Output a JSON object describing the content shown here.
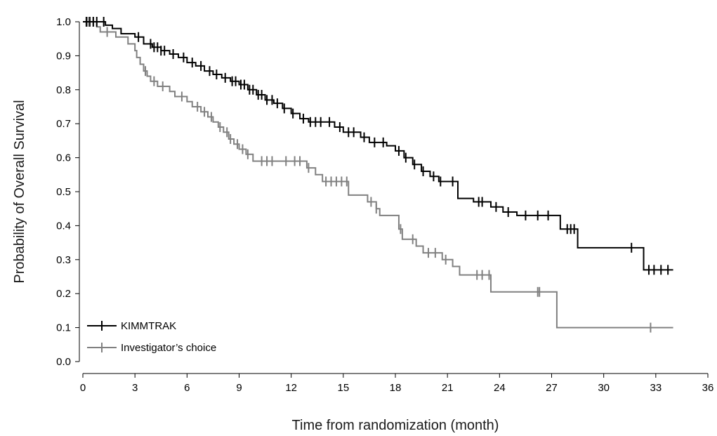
{
  "chart_data": {
    "type": "line",
    "step": true,
    "xlabel": "Time from randomization (month)",
    "ylabel": "Probability of Overall Survival",
    "xlim": [
      0,
      36
    ],
    "ylim": [
      0,
      1.0
    ],
    "xticks": [
      0,
      3,
      6,
      9,
      12,
      15,
      18,
      21,
      24,
      27,
      30,
      33,
      36
    ],
    "yticks": [
      0.0,
      0.1,
      0.2,
      0.3,
      0.4,
      0.5,
      0.6,
      0.7,
      0.8,
      0.9,
      1.0
    ],
    "ytick_labels": [
      "0.0",
      "0.1",
      "0.2",
      "0.3",
      "0.4",
      "0.5",
      "0.6",
      "0.7",
      "0.8",
      "0.9",
      "1.0"
    ],
    "grid": false,
    "legend_position": "bottom-left",
    "series": [
      {
        "name": "KIMMTRAK",
        "color": "#000000",
        "steps": [
          [
            0,
            1.0
          ],
          [
            1.3,
            0.99
          ],
          [
            1.7,
            0.98
          ],
          [
            2.2,
            0.965
          ],
          [
            3.0,
            0.955
          ],
          [
            3.5,
            0.935
          ],
          [
            4.0,
            0.925
          ],
          [
            4.5,
            0.915
          ],
          [
            5.0,
            0.905
          ],
          [
            5.5,
            0.895
          ],
          [
            6.0,
            0.88
          ],
          [
            6.5,
            0.87
          ],
          [
            7.0,
            0.855
          ],
          [
            7.5,
            0.845
          ],
          [
            8.0,
            0.835
          ],
          [
            8.5,
            0.825
          ],
          [
            9.0,
            0.815
          ],
          [
            9.5,
            0.8
          ],
          [
            10.0,
            0.785
          ],
          [
            10.5,
            0.77
          ],
          [
            11.0,
            0.76
          ],
          [
            11.5,
            0.745
          ],
          [
            12.0,
            0.73
          ],
          [
            12.5,
            0.715
          ],
          [
            13.0,
            0.705
          ],
          [
            14.5,
            0.69
          ],
          [
            15.0,
            0.675
          ],
          [
            16.0,
            0.66
          ],
          [
            16.5,
            0.645
          ],
          [
            17.5,
            0.635
          ],
          [
            18.0,
            0.62
          ],
          [
            18.5,
            0.6
          ],
          [
            19.0,
            0.58
          ],
          [
            19.5,
            0.56
          ],
          [
            20.0,
            0.545
          ],
          [
            20.5,
            0.53
          ],
          [
            21.6,
            0.48
          ],
          [
            22.5,
            0.47
          ],
          [
            23.5,
            0.455
          ],
          [
            24.2,
            0.44
          ],
          [
            25.0,
            0.43
          ],
          [
            27.5,
            0.39
          ],
          [
            28.5,
            0.335
          ],
          [
            32.3,
            0.27
          ],
          [
            34.0,
            0.27
          ]
        ],
        "censor": [
          0.2,
          0.4,
          0.6,
          0.8,
          1.2,
          3.2,
          3.9,
          4.1,
          4.3,
          4.5,
          4.7,
          5.2,
          5.8,
          6.3,
          6.8,
          7.3,
          7.7,
          8.2,
          8.6,
          8.8,
          9.1,
          9.3,
          9.6,
          9.8,
          10.1,
          10.3,
          10.6,
          10.9,
          11.2,
          11.6,
          12.1,
          12.7,
          13.1,
          13.4,
          13.7,
          14.2,
          14.8,
          15.3,
          15.6,
          16.2,
          16.8,
          17.3,
          18.2,
          18.6,
          19.1,
          19.6,
          20.2,
          20.6,
          21.3,
          22.8,
          23.0,
          23.8,
          24.5,
          25.5,
          26.2,
          26.8,
          27.9,
          28.1,
          28.3,
          31.6,
          32.6,
          32.9,
          33.3,
          33.7
        ],
        "name_label": "KIMMTRAK"
      },
      {
        "name": "Investigator’s choice",
        "color": "#808080",
        "steps": [
          [
            0,
            1.0
          ],
          [
            0.8,
            0.985
          ],
          [
            1.0,
            0.97
          ],
          [
            1.9,
            0.955
          ],
          [
            2.6,
            0.935
          ],
          [
            3.0,
            0.915
          ],
          [
            3.1,
            0.895
          ],
          [
            3.3,
            0.875
          ],
          [
            3.5,
            0.855
          ],
          [
            3.7,
            0.84
          ],
          [
            3.9,
            0.825
          ],
          [
            4.3,
            0.81
          ],
          [
            5.0,
            0.795
          ],
          [
            5.3,
            0.78
          ],
          [
            6.0,
            0.765
          ],
          [
            6.3,
            0.75
          ],
          [
            6.8,
            0.735
          ],
          [
            7.2,
            0.72
          ],
          [
            7.5,
            0.705
          ],
          [
            7.8,
            0.69
          ],
          [
            8.1,
            0.675
          ],
          [
            8.4,
            0.655
          ],
          [
            8.7,
            0.64
          ],
          [
            9.0,
            0.625
          ],
          [
            9.4,
            0.61
          ],
          [
            9.8,
            0.59
          ],
          [
            12.9,
            0.57
          ],
          [
            13.4,
            0.55
          ],
          [
            13.8,
            0.53
          ],
          [
            15.3,
            0.49
          ],
          [
            16.4,
            0.47
          ],
          [
            16.9,
            0.45
          ],
          [
            17.1,
            0.43
          ],
          [
            18.2,
            0.39
          ],
          [
            18.4,
            0.36
          ],
          [
            19.2,
            0.34
          ],
          [
            19.6,
            0.32
          ],
          [
            20.7,
            0.3
          ],
          [
            21.3,
            0.28
          ],
          [
            21.7,
            0.255
          ],
          [
            23.5,
            0.205
          ],
          [
            27.3,
            0.1
          ],
          [
            34.0,
            0.1
          ]
        ],
        "censor": [
          0.3,
          0.6,
          1.4,
          3.6,
          4.1,
          4.6,
          5.7,
          6.6,
          7.0,
          7.4,
          7.9,
          8.3,
          8.5,
          8.9,
          9.2,
          9.5,
          10.3,
          10.6,
          10.9,
          11.7,
          12.2,
          12.5,
          13.0,
          14.0,
          14.3,
          14.6,
          14.9,
          15.2,
          16.6,
          16.9,
          18.3,
          19.0,
          19.9,
          20.3,
          20.9,
          22.7,
          23.0,
          23.4,
          26.2,
          26.3,
          32.7
        ]
      }
    ]
  }
}
